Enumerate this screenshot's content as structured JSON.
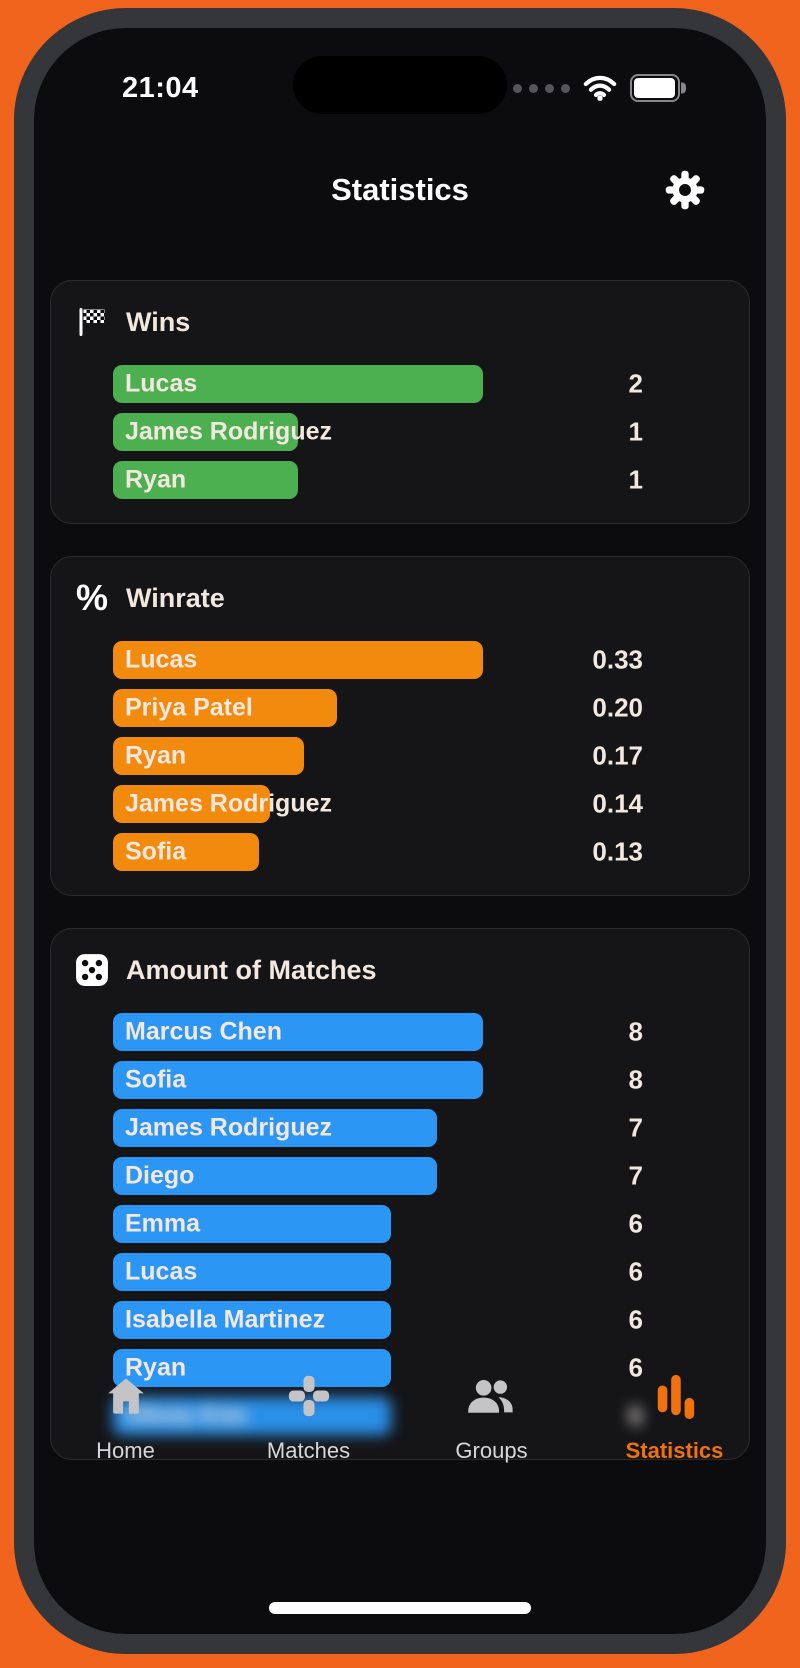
{
  "status_bar": {
    "time": "21:04",
    "cellular_icon": "cellular-dots-icon",
    "wifi_icon": "wifi-icon",
    "battery_icon": "battery-icon"
  },
  "header": {
    "title": "Statistics",
    "settings_icon": "gear-icon"
  },
  "cards": [
    {
      "title": "Wins",
      "icon": "checkered-flag-icon",
      "bar_color": "#4CAF50",
      "max_value": 2,
      "bars": [
        {
          "label": "Lucas",
          "value": "2"
        },
        {
          "label": "James Rodriguez",
          "value": "1"
        },
        {
          "label": "Ryan",
          "value": "1"
        }
      ]
    },
    {
      "title": "Winrate",
      "icon": "percent-icon",
      "bar_color": "#F28A0D",
      "max_value": 0.33,
      "bars": [
        {
          "label": "Lucas",
          "value": "0.33"
        },
        {
          "label": "Priya Patel",
          "value": "0.20"
        },
        {
          "label": "Ryan",
          "value": "0.17"
        },
        {
          "label": "James Rodriguez",
          "value": "0.14"
        },
        {
          "label": "Sofia",
          "value": "0.13"
        }
      ]
    },
    {
      "title": "Amount of Matches",
      "icon": "dice-icon",
      "bar_color": "#2B96F3",
      "max_value": 8,
      "bars": [
        {
          "label": "Marcus Chen",
          "value": "8"
        },
        {
          "label": "Sofia",
          "value": "8"
        },
        {
          "label": "James Rodriguez",
          "value": "7"
        },
        {
          "label": "Diego",
          "value": "7"
        },
        {
          "label": "Emma",
          "value": "6"
        },
        {
          "label": "Lucas",
          "value": "6"
        },
        {
          "label": "Isabella Martinez",
          "value": "6"
        },
        {
          "label": "Ryan",
          "value": "6"
        },
        {
          "label": "Olivia Kim",
          "value": "6",
          "blurred": true
        }
      ]
    }
  ],
  "tab_bar": {
    "active_color": "#F0720F",
    "inactive_color": "#C4C4C6",
    "items": [
      {
        "label": "Home",
        "icon": "home-icon",
        "active": false
      },
      {
        "label": "Matches",
        "icon": "gamepad-icon",
        "active": false
      },
      {
        "label": "Groups",
        "icon": "groups-icon",
        "active": false
      },
      {
        "label": "Statistics",
        "icon": "bar-chart-icon",
        "active": true
      }
    ]
  },
  "colors": {
    "outer_bg": "#F0641E",
    "phone_bezel": "#35363A",
    "screen_bg": "#0C0C0E",
    "card_bg": "#151518",
    "card_border": "#2B2C30",
    "text_warm": "#F3E8DF",
    "wins_green": "#4CAF50",
    "winrate_orange": "#F28A0D",
    "matches_blue": "#2B96F3"
  }
}
